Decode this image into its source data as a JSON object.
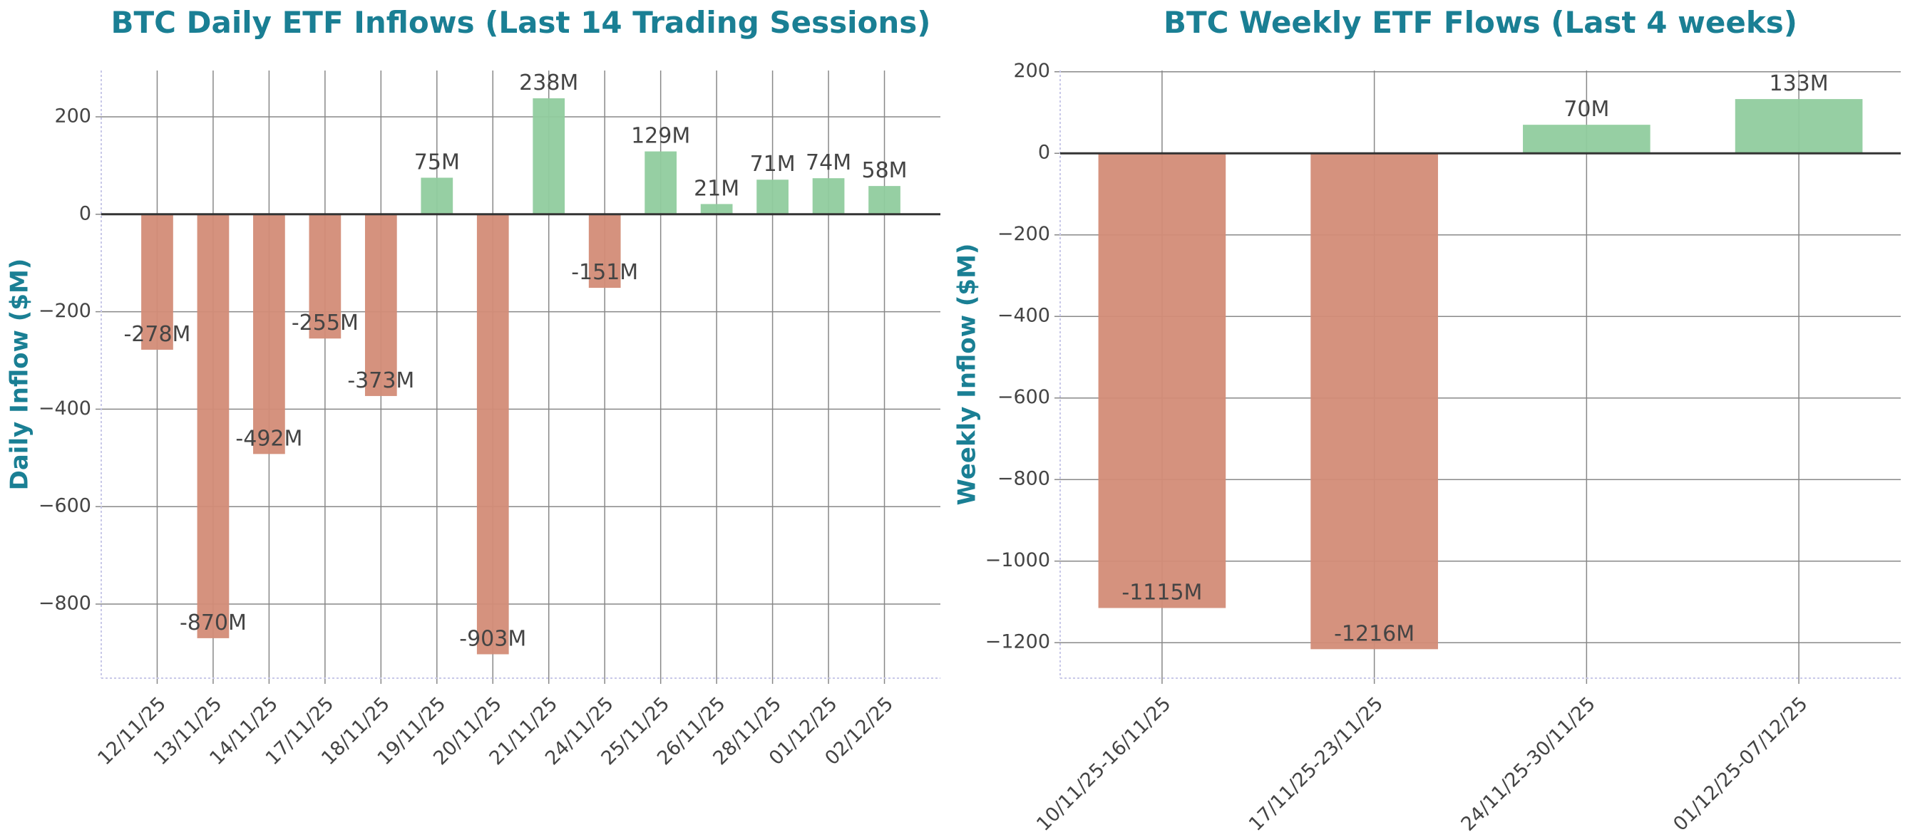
{
  "chart_data": [
    {
      "type": "bar",
      "title": "BTC Daily ETF Inflows (Last 14 Trading Sessions)",
      "y_label": "Daily Inflow ($M)",
      "categories": [
        "12/11/25",
        "13/11/25",
        "14/11/25",
        "17/11/25",
        "18/11/25",
        "19/11/25",
        "20/11/25",
        "21/11/25",
        "24/11/25",
        "25/11/25",
        "26/11/25",
        "28/11/25",
        "01/12/25",
        "02/12/25"
      ],
      "values": [
        -278,
        -870,
        -492,
        -255,
        -373,
        75,
        -903,
        238,
        -151,
        129,
        21,
        71,
        74,
        58
      ],
      "value_labels": [
        "-278M",
        "-870M",
        "-492M",
        "-255M",
        "-373M",
        "75M",
        "-903M",
        "238M",
        "-151M",
        "129M",
        "21M",
        "71M",
        "74M",
        "58M"
      ],
      "positive_color": "#90cc9e",
      "negative_color": "#d38c77",
      "ylim": [
        -952,
        295
      ],
      "yticks": [
        {
          "value": -800,
          "label": "−800"
        },
        {
          "value": -600,
          "label": "−600"
        },
        {
          "value": -400,
          "label": "−400"
        },
        {
          "value": -200,
          "label": "−200"
        },
        0,
        200
      ],
      "grid": true
    },
    {
      "type": "bar",
      "title": "BTC Weekly ETF Flows (Last 4 weeks)",
      "y_label": "Weekly Inflow ($M)",
      "categories": [
        "10/11/25-16/11/25",
        "17/11/25-23/11/25",
        "24/11/25-30/11/25",
        "01/12/25-07/12/25"
      ],
      "values": [
        -1115,
        -1216,
        70,
        133
      ],
      "value_labels": [
        "-1115M",
        "-1216M",
        "70M",
        "133M"
      ],
      "positive_color": "#90cc9e",
      "negative_color": "#d38c77",
      "ylim": [
        -1287,
        203
      ],
      "yticks": [
        {
          "value": -1200,
          "label": "−1200"
        },
        {
          "value": -1000,
          "label": "−1000"
        },
        {
          "value": -800,
          "label": "−800"
        },
        {
          "value": -600,
          "label": "−600"
        },
        {
          "value": -400,
          "label": "−400"
        },
        {
          "value": -200,
          "label": "−200"
        },
        0,
        200
      ],
      "grid": true
    }
  ]
}
